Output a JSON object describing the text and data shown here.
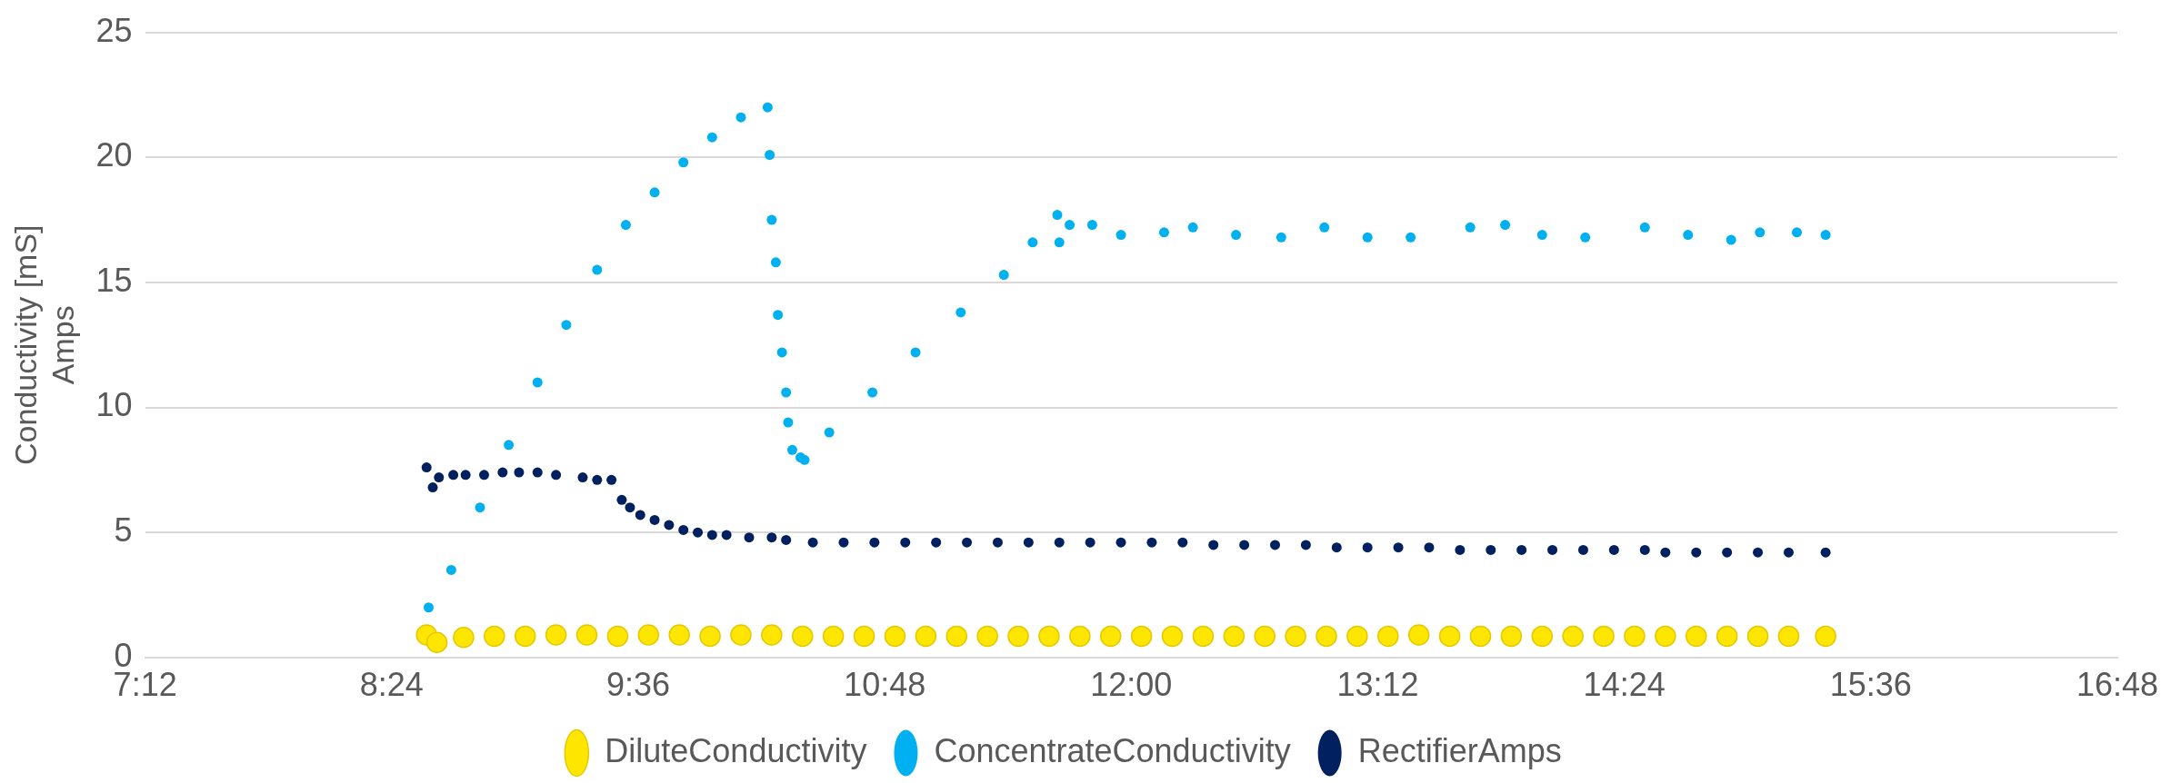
{
  "chart_data": {
    "type": "scatter",
    "ylabel": "Conductivity [mS]\nAmps",
    "xlim": [
      7.2,
      16.8
    ],
    "xticks": [
      {
        "value": 7.2,
        "label": "7:12"
      },
      {
        "value": 8.4,
        "label": "8:24"
      },
      {
        "value": 9.6,
        "label": "9:36"
      },
      {
        "value": 10.8,
        "label": "10:48"
      },
      {
        "value": 12,
        "label": "12:00"
      },
      {
        "value": 13.2,
        "label": "13:12"
      },
      {
        "value": 14.4,
        "label": "14:24"
      },
      {
        "value": 15.6,
        "label": "15:36"
      },
      {
        "value": 16.8,
        "label": "16:48"
      }
    ],
    "ylim": [
      0,
      25
    ],
    "yticks": [
      0,
      5,
      10,
      15,
      20,
      25
    ],
    "grid": "y",
    "legend": "bottom",
    "marker": "circle",
    "series": [
      {
        "name": "DiluteConductivity",
        "color": "#ffe600",
        "x": [
          8.57,
          8.62,
          8.75,
          8.9,
          9.05,
          9.2,
          9.35,
          9.5,
          9.65,
          9.8,
          9.95,
          10.1,
          10.25,
          10.4,
          10.55,
          10.7,
          10.85,
          11.0,
          11.15,
          11.3,
          11.45,
          11.6,
          11.75,
          11.9,
          12.05,
          12.2,
          12.35,
          12.5,
          12.65,
          12.8,
          12.95,
          13.1,
          13.25,
          13.4,
          13.55,
          13.7,
          13.85,
          14.0,
          14.15,
          14.3,
          14.45,
          14.6,
          14.75,
          14.9,
          15.05,
          15.2,
          15.38
        ],
        "values": [
          0.9,
          0.6,
          0.8,
          0.85,
          0.85,
          0.9,
          0.9,
          0.85,
          0.9,
          0.9,
          0.85,
          0.9,
          0.9,
          0.85,
          0.85,
          0.85,
          0.85,
          0.85,
          0.85,
          0.85,
          0.85,
          0.85,
          0.85,
          0.85,
          0.85,
          0.85,
          0.85,
          0.85,
          0.85,
          0.85,
          0.85,
          0.85,
          0.85,
          0.9,
          0.85,
          0.85,
          0.85,
          0.85,
          0.85,
          0.85,
          0.85,
          0.85,
          0.85,
          0.85,
          0.85,
          0.85,
          0.85
        ]
      },
      {
        "name": "ConcentrateConductivity",
        "color": "#00b0f0",
        "x": [
          8.58,
          8.69,
          8.83,
          8.97,
          9.11,
          9.25,
          9.4,
          9.54,
          9.68,
          9.82,
          9.96,
          10.1,
          10.23,
          10.24,
          10.25,
          10.27,
          10.28,
          10.3,
          10.32,
          10.33,
          10.35,
          10.39,
          10.41,
          10.53,
          10.74,
          10.95,
          11.17,
          11.38,
          11.52,
          11.64,
          11.65,
          11.7,
          11.81,
          11.95,
          12.16,
          12.3,
          12.51,
          12.73,
          12.94,
          13.15,
          13.36,
          13.65,
          13.82,
          14.0,
          14.21,
          14.5,
          14.71,
          14.92,
          15.06,
          15.24,
          15.38
        ],
        "values": [
          2.0,
          3.5,
          6.0,
          8.5,
          11,
          13.3,
          15.5,
          17.3,
          18.6,
          19.8,
          20.8,
          21.6,
          22.0,
          20.1,
          17.5,
          15.8,
          13.7,
          12.2,
          10.6,
          9.4,
          8.3,
          8.0,
          7.9,
          9.0,
          10.6,
          12.2,
          13.8,
          15.3,
          16.6,
          17.7,
          16.6,
          17.3,
          17.3,
          16.9,
          17.0,
          17.2,
          16.9,
          16.8,
          17.2,
          16.8,
          16.8,
          17.2,
          17.3,
          16.9,
          16.8,
          17.2,
          16.9,
          16.7,
          17.0,
          17.0,
          16.9
        ]
      },
      {
        "name": "RectifierAmps",
        "color": "#002060",
        "x": [
          8.57,
          8.6,
          8.63,
          8.7,
          8.76,
          8.85,
          8.94,
          9.02,
          9.11,
          9.2,
          9.33,
          9.4,
          9.47,
          9.52,
          9.56,
          9.61,
          9.68,
          9.75,
          9.82,
          9.89,
          9.96,
          10.03,
          10.14,
          10.25,
          10.32,
          10.45,
          10.6,
          10.75,
          10.9,
          11.05,
          11.2,
          11.35,
          11.5,
          11.65,
          11.8,
          11.95,
          12.1,
          12.25,
          12.4,
          12.55,
          12.7,
          12.85,
          13.0,
          13.15,
          13.3,
          13.45,
          13.6,
          13.75,
          13.9,
          14.05,
          14.2,
          14.35,
          14.5,
          14.6,
          14.75,
          14.9,
          15.05,
          15.2,
          15.38
        ],
        "values": [
          7.6,
          6.8,
          7.2,
          7.3,
          7.3,
          7.3,
          7.4,
          7.4,
          7.4,
          7.3,
          7.2,
          7.1,
          7.1,
          6.3,
          6.0,
          5.7,
          5.5,
          5.3,
          5.1,
          5.0,
          4.9,
          4.9,
          4.8,
          4.8,
          4.7,
          4.6,
          4.6,
          4.6,
          4.6,
          4.6,
          4.6,
          4.6,
          4.6,
          4.6,
          4.6,
          4.6,
          4.6,
          4.6,
          4.5,
          4.5,
          4.5,
          4.5,
          4.4,
          4.4,
          4.4,
          4.4,
          4.3,
          4.3,
          4.3,
          4.3,
          4.3,
          4.3,
          4.3,
          4.2,
          4.2,
          4.2,
          4.2,
          4.2,
          4.2
        ]
      }
    ]
  }
}
